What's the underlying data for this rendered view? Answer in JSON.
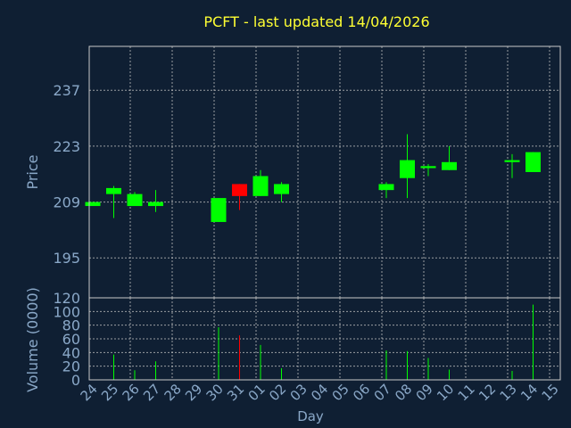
{
  "chart_data": [
    {
      "type": "candlestick",
      "title": "PCFT - last updated 14/04/2026",
      "ylabel": "Price",
      "xlabel": "Day",
      "ylim": [
        185,
        248
      ],
      "yticks": [
        195,
        209,
        223,
        237
      ],
      "x": [
        "24",
        "25",
        "26",
        "27",
        "28",
        "29",
        "30",
        "31",
        "01",
        "02",
        "03",
        "04",
        "05",
        "06",
        "07",
        "08",
        "09",
        "10",
        "11",
        "12",
        "13",
        "14",
        "15"
      ],
      "candles": [
        {
          "day": "24",
          "open": 208,
          "close": 209,
          "high": 209,
          "low": 208,
          "color": "up"
        },
        {
          "day": "25",
          "open": 211,
          "close": 212.5,
          "high": 213,
          "low": 205,
          "color": "up"
        },
        {
          "day": "26",
          "open": 208,
          "close": 211,
          "high": 211.5,
          "low": 208,
          "color": "up"
        },
        {
          "day": "27",
          "open": 208,
          "close": 209,
          "high": 212,
          "low": 206.5,
          "color": "up"
        },
        {
          "day": "30",
          "open": 204,
          "close": 210,
          "high": 210,
          "low": 204,
          "color": "up"
        },
        {
          "day": "31",
          "open": 213.5,
          "close": 210.5,
          "high": 213.5,
          "low": 207,
          "color": "down"
        },
        {
          "day": "01",
          "open": 210.5,
          "close": 215.5,
          "high": 217,
          "low": 210.5,
          "color": "up"
        },
        {
          "day": "02",
          "open": 211,
          "close": 213.5,
          "high": 214,
          "low": 209,
          "color": "up"
        },
        {
          "day": "07",
          "open": 212,
          "close": 213.5,
          "high": 214,
          "low": 210,
          "color": "up"
        },
        {
          "day": "08",
          "open": 215,
          "close": 219.5,
          "high": 226,
          "low": 210,
          "color": "up"
        },
        {
          "day": "09",
          "open": 217.5,
          "close": 218,
          "high": 218.5,
          "low": 215.5,
          "color": "up"
        },
        {
          "day": "10",
          "open": 217,
          "close": 219,
          "high": 223,
          "low": 217,
          "color": "up"
        },
        {
          "day": "13",
          "open": 219,
          "close": 219.5,
          "high": 221,
          "low": 215,
          "color": "up"
        },
        {
          "day": "14",
          "open": 216.5,
          "close": 221.5,
          "high": 221.5,
          "low": 216.5,
          "color": "up"
        }
      ]
    },
    {
      "type": "bar",
      "ylabel": "Volume (0000)",
      "xlabel": "Day",
      "ylim": [
        0,
        120
      ],
      "yticks": [
        0,
        20,
        40,
        60,
        80,
        100,
        120
      ],
      "categories": [
        "24",
        "25",
        "26",
        "27",
        "28",
        "29",
        "30",
        "31",
        "01",
        "02",
        "03",
        "04",
        "05",
        "06",
        "07",
        "08",
        "09",
        "10",
        "11",
        "12",
        "13",
        "14",
        "15"
      ],
      "values": [
        0,
        37,
        14,
        27,
        0,
        0,
        77,
        65,
        51,
        17,
        0,
        0,
        0,
        0,
        43,
        42,
        32,
        15,
        0,
        0,
        13,
        110,
        0
      ],
      "colors": [
        "up",
        "up",
        "up",
        "up",
        "up",
        "up",
        "up",
        "down",
        "up",
        "up",
        "up",
        "up",
        "up",
        "up",
        "up",
        "up",
        "up",
        "up",
        "up",
        "up",
        "up",
        "up",
        "up"
      ]
    }
  ],
  "colors": {
    "background": "#0f1f33",
    "up": "#00ff00",
    "down": "#ff0000",
    "grid": "#c8c8c8",
    "title": "#ffff33",
    "label": "#8aa8c8"
  }
}
